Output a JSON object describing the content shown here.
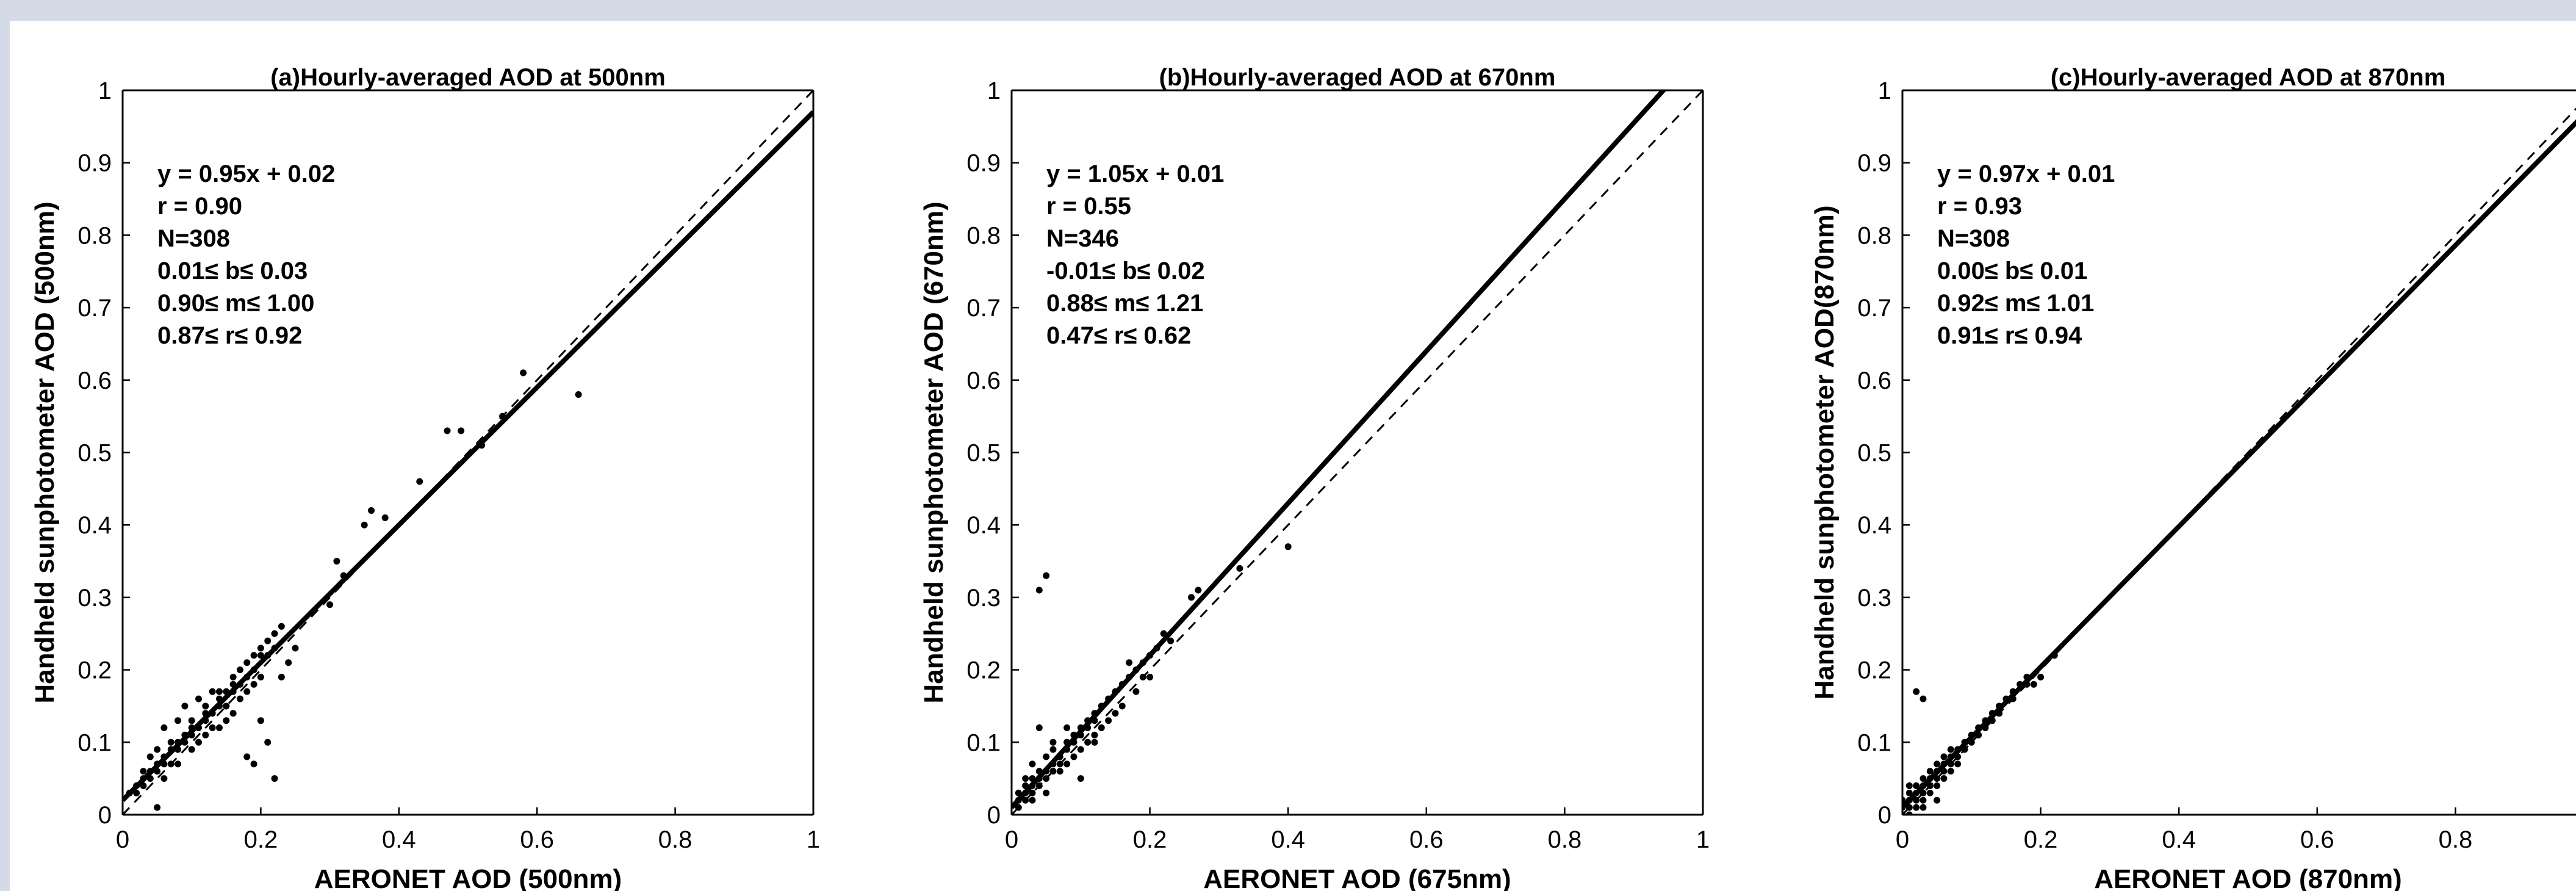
{
  "chart_data": [
    {
      "type": "scatter",
      "title": "(a)Hourly-averaged AOD at 500nm",
      "xlabel": "AERONET AOD (500nm)",
      "ylabel": "Handheld sunphotometer AOD (500nm)",
      "xlim": [
        0,
        1
      ],
      "ylim": [
        0,
        1
      ],
      "xticks": [
        "0",
        "0.2",
        "0.4",
        "0.6",
        "0.8",
        "1"
      ],
      "yticks": [
        "0",
        "0.1",
        "0.2",
        "0.3",
        "0.4",
        "0.5",
        "0.6",
        "0.7",
        "0.8",
        "0.9",
        "1"
      ],
      "annotations": [
        "y = 0.95x + 0.02",
        "r = 0.90",
        "N=308",
        "0.01≤ b≤ 0.03",
        "0.90≤ m≤ 1.00",
        "0.87≤ r≤ 0.92"
      ],
      "fit": {
        "slope": 0.95,
        "intercept": 0.02
      },
      "points": [
        [
          0.01,
          0.03
        ],
        [
          0.02,
          0.04
        ],
        [
          0.02,
          0.03
        ],
        [
          0.03,
          0.05
        ],
        [
          0.03,
          0.04
        ],
        [
          0.04,
          0.06
        ],
        [
          0.04,
          0.05
        ],
        [
          0.05,
          0.06
        ],
        [
          0.05,
          0.07
        ],
        [
          0.06,
          0.07
        ],
        [
          0.06,
          0.08
        ],
        [
          0.07,
          0.09
        ],
        [
          0.07,
          0.07
        ],
        [
          0.08,
          0.09
        ],
        [
          0.08,
          0.1
        ],
        [
          0.09,
          0.1
        ],
        [
          0.09,
          0.11
        ],
        [
          0.1,
          0.11
        ],
        [
          0.1,
          0.09
        ],
        [
          0.11,
          0.12
        ],
        [
          0.11,
          0.1
        ],
        [
          0.12,
          0.13
        ],
        [
          0.12,
          0.14
        ],
        [
          0.13,
          0.14
        ],
        [
          0.13,
          0.12
        ],
        [
          0.14,
          0.15
        ],
        [
          0.14,
          0.16
        ],
        [
          0.15,
          0.15
        ],
        [
          0.15,
          0.17
        ],
        [
          0.16,
          0.17
        ],
        [
          0.16,
          0.19
        ],
        [
          0.17,
          0.18
        ],
        [
          0.17,
          0.2
        ],
        [
          0.18,
          0.19
        ],
        [
          0.18,
          0.21
        ],
        [
          0.19,
          0.22
        ],
        [
          0.19,
          0.2
        ],
        [
          0.2,
          0.22
        ],
        [
          0.2,
          0.23
        ],
        [
          0.21,
          0.24
        ],
        [
          0.21,
          0.22
        ],
        [
          0.22,
          0.23
        ],
        [
          0.22,
          0.25
        ],
        [
          0.23,
          0.26
        ],
        [
          0.03,
          0.06
        ],
        [
          0.05,
          0.09
        ],
        [
          0.06,
          0.12
        ],
        [
          0.07,
          0.1
        ],
        [
          0.08,
          0.13
        ],
        [
          0.09,
          0.15
        ],
        [
          0.1,
          0.13
        ],
        [
          0.11,
          0.16
        ],
        [
          0.12,
          0.11
        ],
        [
          0.13,
          0.17
        ],
        [
          0.14,
          0.12
        ],
        [
          0.15,
          0.13
        ],
        [
          0.16,
          0.14
        ],
        [
          0.17,
          0.16
        ],
        [
          0.18,
          0.17
        ],
        [
          0.19,
          0.18
        ],
        [
          0.2,
          0.19
        ],
        [
          0.05,
          0.01
        ],
        [
          0.18,
          0.08
        ],
        [
          0.19,
          0.07
        ],
        [
          0.2,
          0.13
        ],
        [
          0.21,
          0.1
        ],
        [
          0.22,
          0.05
        ],
        [
          0.23,
          0.19
        ],
        [
          0.24,
          0.21
        ],
        [
          0.25,
          0.23
        ],
        [
          0.3,
          0.29
        ],
        [
          0.31,
          0.35
        ],
        [
          0.32,
          0.33
        ],
        [
          0.35,
          0.4
        ],
        [
          0.36,
          0.42
        ],
        [
          0.38,
          0.41
        ],
        [
          0.43,
          0.46
        ],
        [
          0.47,
          0.53
        ],
        [
          0.49,
          0.53
        ],
        [
          0.52,
          0.51
        ],
        [
          0.55,
          0.55
        ],
        [
          0.58,
          0.61
        ],
        [
          0.66,
          0.58
        ],
        [
          0.04,
          0.08
        ],
        [
          0.06,
          0.05
        ],
        [
          0.08,
          0.07
        ],
        [
          0.1,
          0.12
        ],
        [
          0.12,
          0.15
        ],
        [
          0.14,
          0.17
        ],
        [
          0.16,
          0.18
        ]
      ]
    },
    {
      "type": "scatter",
      "title": "(b)Hourly-averaged AOD at 670nm",
      "xlabel": "AERONET AOD (675nm)",
      "ylabel": "Handheld sunphotometer AOD (670nm)",
      "xlim": [
        0,
        1
      ],
      "ylim": [
        0,
        1
      ],
      "xticks": [
        "0",
        "0.2",
        "0.4",
        "0.6",
        "0.8",
        "1"
      ],
      "yticks": [
        "0",
        "0.1",
        "0.2",
        "0.3",
        "0.4",
        "0.5",
        "0.6",
        "0.7",
        "0.8",
        "0.9",
        "1"
      ],
      "annotations": [
        "y = 1.05x + 0.01",
        "r = 0.55",
        "N=346",
        "-0.01≤ b≤ 0.02",
        "0.88≤ m≤ 1.21",
        "0.47≤ r≤ 0.62"
      ],
      "fit": {
        "slope": 1.05,
        "intercept": 0.01
      },
      "points": [
        [
          0.01,
          0.02
        ],
        [
          0.01,
          0.01
        ],
        [
          0.02,
          0.03
        ],
        [
          0.02,
          0.02
        ],
        [
          0.03,
          0.04
        ],
        [
          0.03,
          0.03
        ],
        [
          0.04,
          0.05
        ],
        [
          0.04,
          0.04
        ],
        [
          0.05,
          0.06
        ],
        [
          0.05,
          0.05
        ],
        [
          0.06,
          0.07
        ],
        [
          0.06,
          0.06
        ],
        [
          0.07,
          0.08
        ],
        [
          0.07,
          0.07
        ],
        [
          0.08,
          0.09
        ],
        [
          0.08,
          0.1
        ],
        [
          0.09,
          0.1
        ],
        [
          0.09,
          0.11
        ],
        [
          0.1,
          0.11
        ],
        [
          0.1,
          0.12
        ],
        [
          0.11,
          0.12
        ],
        [
          0.11,
          0.13
        ],
        [
          0.12,
          0.13
        ],
        [
          0.12,
          0.14
        ],
        [
          0.13,
          0.15
        ],
        [
          0.14,
          0.16
        ],
        [
          0.15,
          0.17
        ],
        [
          0.16,
          0.18
        ],
        [
          0.17,
          0.19
        ],
        [
          0.18,
          0.2
        ],
        [
          0.19,
          0.21
        ],
        [
          0.2,
          0.22
        ],
        [
          0.21,
          0.23
        ],
        [
          0.22,
          0.25
        ],
        [
          0.03,
          0.05
        ],
        [
          0.05,
          0.08
        ],
        [
          0.06,
          0.09
        ],
        [
          0.07,
          0.06
        ],
        [
          0.08,
          0.07
        ],
        [
          0.09,
          0.08
        ],
        [
          0.1,
          0.09
        ],
        [
          0.11,
          0.1
        ],
        [
          0.12,
          0.11
        ],
        [
          0.04,
          0.12
        ],
        [
          0.03,
          0.07
        ],
        [
          0.02,
          0.05
        ],
        [
          0.05,
          0.03
        ],
        [
          0.1,
          0.05
        ],
        [
          0.12,
          0.1
        ],
        [
          0.14,
          0.13
        ],
        [
          0.16,
          0.15
        ],
        [
          0.18,
          0.17
        ],
        [
          0.2,
          0.19
        ],
        [
          0.04,
          0.31
        ],
        [
          0.05,
          0.33
        ],
        [
          0.26,
          0.3
        ],
        [
          0.27,
          0.31
        ],
        [
          0.33,
          0.34
        ],
        [
          0.4,
          0.37
        ],
        [
          0.06,
          0.1
        ],
        [
          0.08,
          0.12
        ],
        [
          0.13,
          0.12
        ],
        [
          0.15,
          0.14
        ],
        [
          0.17,
          0.21
        ],
        [
          0.19,
          0.19
        ],
        [
          0.23,
          0.24
        ],
        [
          0.01,
          0.03
        ],
        [
          0.02,
          0.04
        ],
        [
          0.03,
          0.02
        ],
        [
          0.04,
          0.06
        ]
      ]
    },
    {
      "type": "scatter",
      "title": "(c)Hourly-averaged AOD at 870nm",
      "xlabel": "AERONET AOD (870nm)",
      "ylabel": "Handheld sunphotometer AOD(870nm)",
      "xlim": [
        0,
        1
      ],
      "ylim": [
        0,
        1
      ],
      "xticks": [
        "0",
        "0.2",
        "0.4",
        "0.6",
        "0.8"
      ],
      "yticks": [
        "0",
        "0.1",
        "0.2",
        "0.3",
        "0.4",
        "0.5",
        "0.6",
        "0.7",
        "0.8",
        "0.9",
        "1"
      ],
      "annotations": [
        "y = 0.97x + 0.01",
        "r = 0.93",
        "N=308",
        "0.00≤ b≤ 0.01",
        "0.92≤ m≤ 1.01",
        "0.91≤ r≤ 0.94"
      ],
      "fit": {
        "slope": 0.97,
        "intercept": 0.01
      },
      "points": [
        [
          0.0,
          0.01
        ],
        [
          0.01,
          0.01
        ],
        [
          0.01,
          0.02
        ],
        [
          0.02,
          0.02
        ],
        [
          0.02,
          0.03
        ],
        [
          0.01,
          0.0
        ],
        [
          0.02,
          0.01
        ],
        [
          0.03,
          0.03
        ],
        [
          0.03,
          0.04
        ],
        [
          0.04,
          0.04
        ],
        [
          0.04,
          0.05
        ],
        [
          0.05,
          0.05
        ],
        [
          0.05,
          0.06
        ],
        [
          0.06,
          0.06
        ],
        [
          0.06,
          0.07
        ],
        [
          0.07,
          0.07
        ],
        [
          0.07,
          0.08
        ],
        [
          0.08,
          0.08
        ],
        [
          0.08,
          0.09
        ],
        [
          0.09,
          0.09
        ],
        [
          0.1,
          0.1
        ],
        [
          0.11,
          0.11
        ],
        [
          0.12,
          0.12
        ],
        [
          0.13,
          0.13
        ],
        [
          0.14,
          0.14
        ],
        [
          0.15,
          0.16
        ],
        [
          0.16,
          0.16
        ],
        [
          0.17,
          0.18
        ],
        [
          0.18,
          0.19
        ],
        [
          0.19,
          0.18
        ],
        [
          0.2,
          0.19
        ],
        [
          0.22,
          0.22
        ],
        [
          0.03,
          0.02
        ],
        [
          0.04,
          0.03
        ],
        [
          0.05,
          0.04
        ],
        [
          0.06,
          0.05
        ],
        [
          0.07,
          0.06
        ],
        [
          0.08,
          0.07
        ],
        [
          0.02,
          0.04
        ],
        [
          0.03,
          0.05
        ],
        [
          0.04,
          0.06
        ],
        [
          0.05,
          0.07
        ],
        [
          0.06,
          0.08
        ],
        [
          0.07,
          0.09
        ],
        [
          0.09,
          0.1
        ],
        [
          0.1,
          0.11
        ],
        [
          0.11,
          0.12
        ],
        [
          0.02,
          0.17
        ],
        [
          0.03,
          0.16
        ],
        [
          0.0,
          0.02
        ],
        [
          0.01,
          0.03
        ],
        [
          0.03,
          0.01
        ],
        [
          0.05,
          0.02
        ],
        [
          0.12,
          0.13
        ],
        [
          0.13,
          0.14
        ],
        [
          0.14,
          0.15
        ],
        [
          0.16,
          0.17
        ],
        [
          0.18,
          0.18
        ],
        [
          0.0,
          0.0
        ],
        [
          0.01,
          0.04
        ]
      ]
    }
  ]
}
